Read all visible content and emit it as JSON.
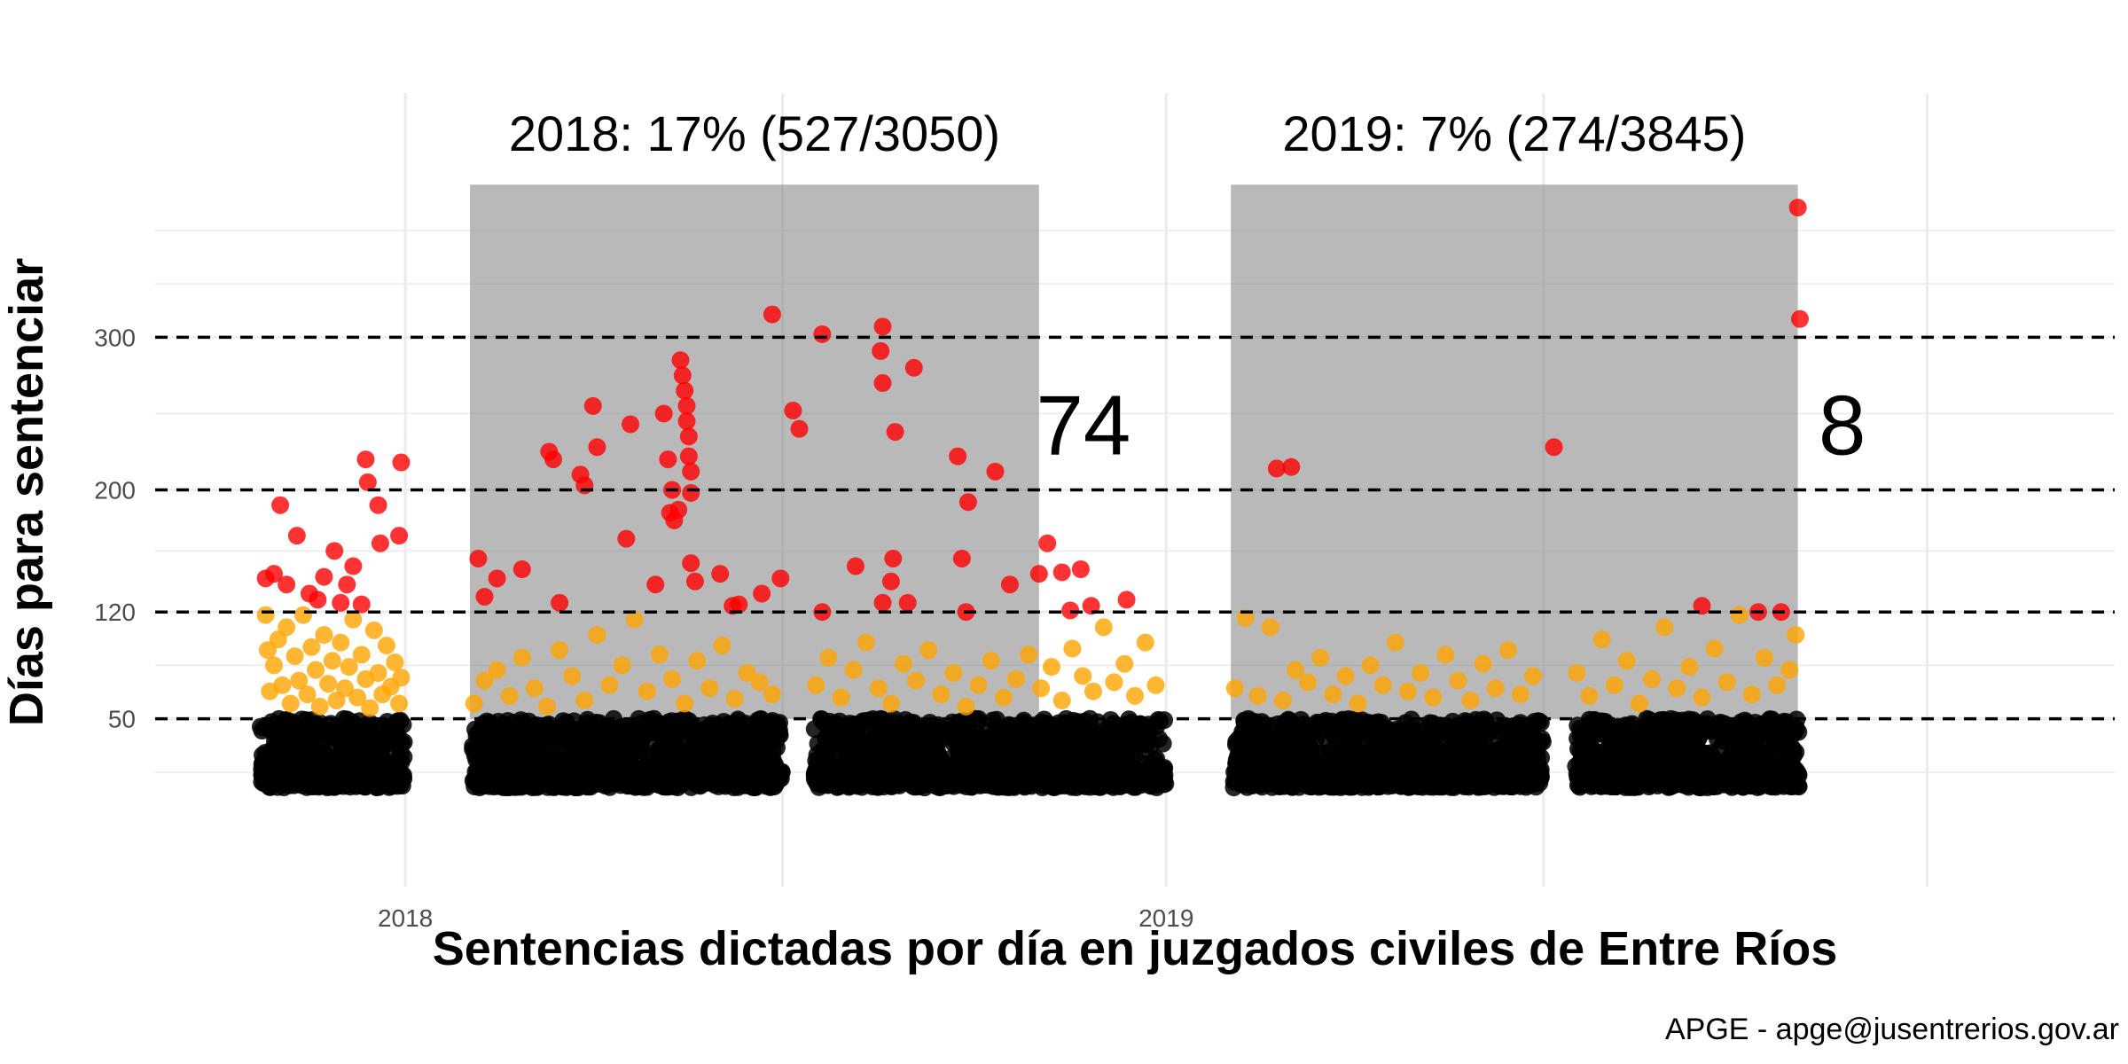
{
  "chart_data": {
    "type": "scatter",
    "title": "",
    "xlabel": "Sentencias dictadas por día en juzgados civiles de Entre Ríos",
    "ylabel": "Días para sentenciar",
    "caption": "APGE - apge@jusentrerios.gov.ar",
    "x_range": [
      "2017-09-03",
      "2020-03-31"
    ],
    "y_range": [
      -60,
      460
    ],
    "y_ticks": [
      50,
      120,
      200,
      300
    ],
    "x_ticks": [
      {
        "date": "2018-01-01",
        "label": "2018"
      },
      {
        "date": "2019-01-01",
        "label": "2019"
      }
    ],
    "x_gridlines": [
      "2018-01-01",
      "2018-07-01",
      "2019-01-01",
      "2019-07-01",
      "2020-01-01"
    ],
    "y_minor_gridlines": [
      15,
      85,
      160,
      250,
      335,
      370
    ],
    "reference_lines": [
      50,
      120,
      200,
      300
    ],
    "shaded_periods": [
      {
        "start": "2018-02-01",
        "end": "2018-11-01",
        "y_top": 400,
        "label": "2018: 17% (527/3050)",
        "count_label": "74"
      },
      {
        "start": "2019-02-01",
        "end": "2019-10-31",
        "y_top": 400,
        "label": "2019: 7% (274/3845)",
        "count_label": "8"
      }
    ],
    "colors": {
      "black": "#000000",
      "orange": "#FFA500",
      "red": "#FF0000",
      "shade": "#808080",
      "reference_line": "#000000",
      "grid": "#ebebeb"
    },
    "series": [
      {
        "color_key": "black",
        "description_range": "0-50",
        "band": [
          5,
          50
        ],
        "active_ranges": [
          [
            "2017-10-24",
            "2017-12-31"
          ],
          [
            "2018-02-03",
            "2018-06-30"
          ],
          [
            "2018-07-17",
            "2018-12-31"
          ],
          [
            "2019-02-03",
            "2019-06-30"
          ],
          [
            "2019-07-17",
            "2019-10-31"
          ]
        ]
      },
      {
        "color_key": "orange",
        "description_range": "50-120",
        "points": [
          [
            "2017-10-26",
            118
          ],
          [
            "2017-10-27",
            95
          ],
          [
            "2017-10-28",
            68
          ],
          [
            "2017-10-30",
            85
          ],
          [
            "2017-11-01",
            102
          ],
          [
            "2017-11-03",
            72
          ],
          [
            "2017-11-05",
            110
          ],
          [
            "2017-11-07",
            60
          ],
          [
            "2017-11-09",
            91
          ],
          [
            "2017-11-11",
            75
          ],
          [
            "2017-11-13",
            118
          ],
          [
            "2017-11-15",
            66
          ],
          [
            "2017-11-17",
            97
          ],
          [
            "2017-11-19",
            82
          ],
          [
            "2017-11-21",
            58
          ],
          [
            "2017-11-23",
            105
          ],
          [
            "2017-11-25",
            73
          ],
          [
            "2017-11-27",
            88
          ],
          [
            "2017-11-29",
            62
          ],
          [
            "2017-12-01",
            100
          ],
          [
            "2017-12-03",
            70
          ],
          [
            "2017-12-05",
            84
          ],
          [
            "2017-12-07",
            115
          ],
          [
            "2017-12-09",
            64
          ],
          [
            "2017-12-11",
            92
          ],
          [
            "2017-12-13",
            76
          ],
          [
            "2017-12-15",
            57
          ],
          [
            "2017-12-17",
            108
          ],
          [
            "2017-12-19",
            80
          ],
          [
            "2017-12-21",
            66
          ],
          [
            "2017-12-23",
            98
          ],
          [
            "2017-12-25",
            71
          ],
          [
            "2017-12-27",
            87
          ],
          [
            "2017-12-29",
            60
          ],
          [
            "2017-12-30",
            77
          ],
          [
            "2018-02-03",
            60
          ],
          [
            "2018-02-08",
            75
          ],
          [
            "2018-02-14",
            82
          ],
          [
            "2018-02-20",
            65
          ],
          [
            "2018-02-26",
            90
          ],
          [
            "2018-03-04",
            70
          ],
          [
            "2018-03-10",
            58
          ],
          [
            "2018-03-16",
            95
          ],
          [
            "2018-03-22",
            78
          ],
          [
            "2018-03-28",
            62
          ],
          [
            "2018-04-03",
            105
          ],
          [
            "2018-04-09",
            72
          ],
          [
            "2018-04-15",
            85
          ],
          [
            "2018-04-21",
            115
          ],
          [
            "2018-04-27",
            68
          ],
          [
            "2018-05-03",
            92
          ],
          [
            "2018-05-09",
            76
          ],
          [
            "2018-05-15",
            60
          ],
          [
            "2018-05-21",
            88
          ],
          [
            "2018-05-27",
            70
          ],
          [
            "2018-06-02",
            98
          ],
          [
            "2018-06-08",
            63
          ],
          [
            "2018-06-14",
            80
          ],
          [
            "2018-06-20",
            74
          ],
          [
            "2018-06-26",
            66
          ],
          [
            "2018-07-17",
            72
          ],
          [
            "2018-07-23",
            90
          ],
          [
            "2018-07-29",
            64
          ],
          [
            "2018-08-04",
            82
          ],
          [
            "2018-08-10",
            100
          ],
          [
            "2018-08-16",
            70
          ],
          [
            "2018-08-22",
            60
          ],
          [
            "2018-08-28",
            86
          ],
          [
            "2018-09-03",
            75
          ],
          [
            "2018-09-09",
            95
          ],
          [
            "2018-09-15",
            66
          ],
          [
            "2018-09-21",
            80
          ],
          [
            "2018-09-27",
            58
          ],
          [
            "2018-10-03",
            72
          ],
          [
            "2018-10-09",
            88
          ],
          [
            "2018-10-15",
            64
          ],
          [
            "2018-10-21",
            76
          ],
          [
            "2018-10-27",
            92
          ],
          [
            "2018-11-02",
            70
          ],
          [
            "2018-11-07",
            84
          ],
          [
            "2018-11-12",
            62
          ],
          [
            "2018-11-17",
            96
          ],
          [
            "2018-11-22",
            78
          ],
          [
            "2018-11-27",
            68
          ],
          [
            "2018-12-02",
            110
          ],
          [
            "2018-12-07",
            74
          ],
          [
            "2018-12-12",
            86
          ],
          [
            "2018-12-17",
            65
          ],
          [
            "2018-12-22",
            100
          ],
          [
            "2018-12-27",
            72
          ],
          [
            "2019-02-03",
            70
          ],
          [
            "2019-02-08",
            116
          ],
          [
            "2019-02-14",
            65
          ],
          [
            "2019-02-20",
            110
          ],
          [
            "2019-02-26",
            62
          ],
          [
            "2019-03-04",
            82
          ],
          [
            "2019-03-10",
            74
          ],
          [
            "2019-03-16",
            90
          ],
          [
            "2019-03-22",
            66
          ],
          [
            "2019-03-28",
            78
          ],
          [
            "2019-04-03",
            60
          ],
          [
            "2019-04-09",
            85
          ],
          [
            "2019-04-15",
            72
          ],
          [
            "2019-04-21",
            100
          ],
          [
            "2019-04-27",
            68
          ],
          [
            "2019-05-03",
            80
          ],
          [
            "2019-05-09",
            64
          ],
          [
            "2019-05-15",
            92
          ],
          [
            "2019-05-21",
            75
          ],
          [
            "2019-05-27",
            62
          ],
          [
            "2019-06-02",
            86
          ],
          [
            "2019-06-08",
            70
          ],
          [
            "2019-06-14",
            95
          ],
          [
            "2019-06-20",
            66
          ],
          [
            "2019-06-26",
            78
          ],
          [
            "2019-07-17",
            80
          ],
          [
            "2019-07-23",
            65
          ],
          [
            "2019-07-29",
            102
          ],
          [
            "2019-08-04",
            72
          ],
          [
            "2019-08-10",
            88
          ],
          [
            "2019-08-16",
            60
          ],
          [
            "2019-08-22",
            76
          ],
          [
            "2019-08-28",
            110
          ],
          [
            "2019-09-03",
            70
          ],
          [
            "2019-09-09",
            84
          ],
          [
            "2019-09-15",
            64
          ],
          [
            "2019-09-21",
            96
          ],
          [
            "2019-09-27",
            74
          ],
          [
            "2019-10-03",
            118
          ],
          [
            "2019-10-09",
            66
          ],
          [
            "2019-10-15",
            90
          ],
          [
            "2019-10-21",
            72
          ],
          [
            "2019-10-27",
            82
          ],
          [
            "2019-10-30",
            105
          ]
        ]
      },
      {
        "color_key": "red",
        "description_range": ">120",
        "points": [
          [
            "2017-10-26",
            142
          ],
          [
            "2017-10-30",
            145
          ],
          [
            "2017-11-02",
            190
          ],
          [
            "2017-11-05",
            138
          ],
          [
            "2017-11-10",
            170
          ],
          [
            "2017-11-16",
            132
          ],
          [
            "2017-11-20",
            128
          ],
          [
            "2017-11-23",
            143
          ],
          [
            "2017-11-28",
            160
          ],
          [
            "2017-12-01",
            126
          ],
          [
            "2017-12-04",
            138
          ],
          [
            "2017-12-07",
            150
          ],
          [
            "2017-12-11",
            125
          ],
          [
            "2017-12-13",
            220
          ],
          [
            "2017-12-14",
            205
          ],
          [
            "2017-12-19",
            190
          ],
          [
            "2017-12-20",
            165
          ],
          [
            "2017-12-29",
            170
          ],
          [
            "2017-12-30",
            218
          ],
          [
            "2018-02-05",
            155
          ],
          [
            "2018-02-08",
            130
          ],
          [
            "2018-02-14",
            142
          ],
          [
            "2018-02-26",
            148
          ],
          [
            "2018-03-11",
            225
          ],
          [
            "2018-03-13",
            220
          ],
          [
            "2018-03-16",
            126
          ],
          [
            "2018-03-26",
            210
          ],
          [
            "2018-03-28",
            203
          ],
          [
            "2018-04-01",
            255
          ],
          [
            "2018-04-03",
            228
          ],
          [
            "2018-04-17",
            168
          ],
          [
            "2018-04-19",
            243
          ],
          [
            "2018-05-01",
            138
          ],
          [
            "2018-05-05",
            250
          ],
          [
            "2018-05-07",
            220
          ],
          [
            "2018-05-08",
            185
          ],
          [
            "2018-05-09",
            200
          ],
          [
            "2018-05-10",
            180
          ],
          [
            "2018-05-12",
            187
          ],
          [
            "2018-05-13",
            285
          ],
          [
            "2018-05-14",
            275
          ],
          [
            "2018-05-15",
            265
          ],
          [
            "2018-05-16",
            255
          ],
          [
            "2018-05-16",
            245
          ],
          [
            "2018-05-17",
            235
          ],
          [
            "2018-05-17",
            222
          ],
          [
            "2018-05-18",
            212
          ],
          [
            "2018-05-18",
            198
          ],
          [
            "2018-05-18",
            152
          ],
          [
            "2018-05-20",
            140
          ],
          [
            "2018-06-01",
            145
          ],
          [
            "2018-06-07",
            124
          ],
          [
            "2018-06-10",
            125
          ],
          [
            "2018-06-21",
            132
          ],
          [
            "2018-06-30",
            142
          ],
          [
            "2018-06-26",
            315
          ],
          [
            "2018-07-06",
            252
          ],
          [
            "2018-07-09",
            240
          ],
          [
            "2018-07-20",
            302
          ],
          [
            "2018-07-20",
            120
          ],
          [
            "2018-08-05",
            150
          ],
          [
            "2018-08-17",
            291
          ],
          [
            "2018-08-18",
            307
          ],
          [
            "2018-08-18",
            270
          ],
          [
            "2018-08-18",
            126
          ],
          [
            "2018-08-22",
            140
          ],
          [
            "2018-08-23",
            155
          ],
          [
            "2018-08-24",
            238
          ],
          [
            "2018-08-30",
            126
          ],
          [
            "2018-09-02",
            280
          ],
          [
            "2018-09-23",
            222
          ],
          [
            "2018-09-25",
            155
          ],
          [
            "2018-09-27",
            120
          ],
          [
            "2018-09-28",
            192
          ],
          [
            "2018-10-11",
            212
          ],
          [
            "2018-10-18",
            138
          ],
          [
            "2018-11-01",
            145
          ],
          [
            "2018-11-05",
            165
          ],
          [
            "2018-11-12",
            146
          ],
          [
            "2018-11-16",
            121
          ],
          [
            "2018-11-21",
            148
          ],
          [
            "2018-11-26",
            124
          ],
          [
            "2018-12-13",
            128
          ],
          [
            "2019-02-23",
            214
          ],
          [
            "2019-03-02",
            215
          ],
          [
            "2019-07-06",
            228
          ],
          [
            "2019-09-15",
            124
          ],
          [
            "2019-10-12",
            120
          ],
          [
            "2019-10-23",
            120
          ],
          [
            "2019-10-31",
            385
          ],
          [
            "2019-11-01",
            312
          ]
        ]
      }
    ]
  }
}
